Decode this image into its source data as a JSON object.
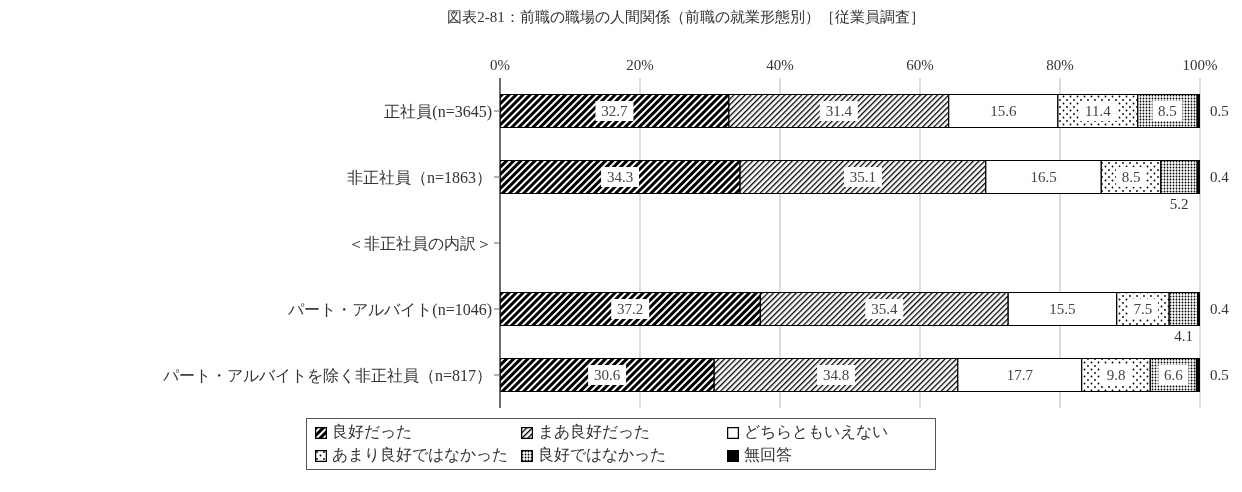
{
  "chart_data": {
    "type": "bar",
    "orientation": "horizontal",
    "stacked": true,
    "title": "図表2-81：前職の職場の人間関係（前職の就業形態別）［従業員調査］",
    "categories": [
      "正社員(n=3645)",
      "非正社員（n=1863）",
      "＜非正社員の内訳＞",
      "パート・アルバイト(n=1046)",
      "パート・アルバイトを除く非正社員（n=817）"
    ],
    "series": [
      {
        "name": "良好だった",
        "color": "#000000",
        "values": [
          32.7,
          34.3,
          null,
          37.2,
          30.6
        ]
      },
      {
        "name": "まあ良好だった",
        "color": "#000000",
        "values": [
          31.4,
          35.1,
          null,
          35.4,
          34.8
        ]
      },
      {
        "name": "どちらともいえない",
        "color": "#000000",
        "values": [
          15.6,
          16.5,
          null,
          15.5,
          17.7
        ]
      },
      {
        "name": "あまり良好ではなかった",
        "color": "#000000",
        "values": [
          11.4,
          8.5,
          null,
          7.5,
          9.8
        ]
      },
      {
        "name": "良好ではなかった",
        "color": "#000000",
        "values": [
          8.5,
          5.2,
          null,
          4.1,
          6.6
        ]
      },
      {
        "name": "無回答",
        "color": "#000000",
        "values": [
          0.5,
          0.4,
          null,
          0.4,
          0.5
        ]
      }
    ],
    "xlim": [
      0,
      100
    ],
    "xticks": [
      {
        "value": 0,
        "label": "0%"
      },
      {
        "value": 20,
        "label": "20%"
      },
      {
        "value": 40,
        "label": "40%"
      },
      {
        "value": 60,
        "label": "60%"
      },
      {
        "value": 80,
        "label": "80%"
      },
      {
        "value": 100,
        "label": "100%"
      }
    ],
    "grid": "x",
    "legend": "bottom",
    "data_labels": true
  }
}
